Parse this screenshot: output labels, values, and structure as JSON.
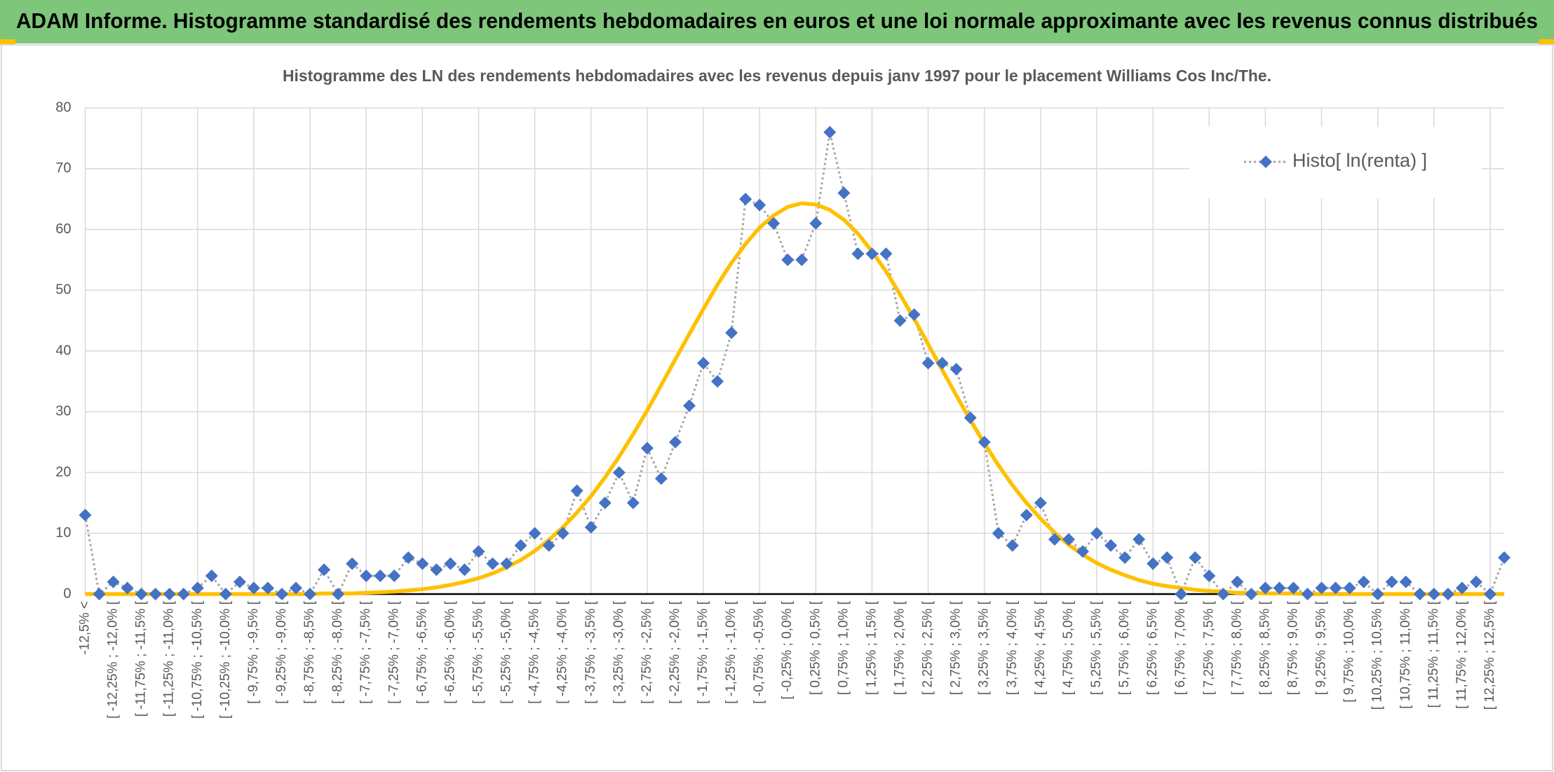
{
  "chart_data": {
    "type": "line",
    "title": "ADAM Informe. Histogramme standardisé des rendements hebdomadaires en euros et une loi normale approximante avec les revenus connus distribués",
    "subtitle": "Histogramme des LN des rendements hebdomadaires avec les revenus depuis janv 1997 pour le placement Williams Cos Inc/The.",
    "categories": [
      "-12,5% <",
      null,
      "[ -12,25% ; -12,0% [",
      null,
      "[ -11,75% ; -11,5% [",
      null,
      "[ -11,25% ; -11,0% [",
      null,
      "[ -10,75% ; -10,5% [",
      null,
      "[ -10,25% ; -10,0% [",
      null,
      "[ -9,75% ; -9,5% [",
      null,
      "[ -9,25% ; -9,0% [",
      null,
      "[ -8,75% ; -8,5% [",
      null,
      "[ -8,25% ; -8,0% [",
      null,
      "[ -7,75% ; -7,5% [",
      null,
      "[ -7,25% ; -7,0% [",
      null,
      "[ -6,75% ; -6,5% [",
      null,
      "[ -6,25% ; -6,0% [",
      null,
      "[ -5,75% ; -5,5% [",
      null,
      "[ -5,25% ; -5,0% [",
      null,
      "[ -4,75% ; -4,5% [",
      null,
      "[ -4,25% ; -4,0% [",
      null,
      "[ -3,75% ; -3,5% [",
      null,
      "[ -3,25% ; -3,0% [",
      null,
      "[ -2,75% ; -2,5% [",
      null,
      "[ -2,25% ; -2,0% [",
      null,
      "[ -1,75% ; -1,5% [",
      null,
      "[ -1,25% ; -1,0% [",
      null,
      "[ -0,75% ; -0,5% [",
      null,
      "[ -0,25% ; 0,0% [",
      null,
      "[ 0,25% ; 0,5% [",
      null,
      "[ 0,75% ; 1,0% [",
      null,
      "[ 1,25% ; 1,5% [",
      null,
      "[ 1,75% ; 2,0% [",
      null,
      "[ 2,25% ; 2,5% [",
      null,
      "[ 2,75% ; 3,0% [",
      null,
      "[ 3,25% ; 3,5% [",
      null,
      "[ 3,75% ; 4,0% [",
      null,
      "[ 4,25% ; 4,5% [",
      null,
      "[ 4,75% ; 5,0% [",
      null,
      "[ 5,25% ; 5,5% [",
      null,
      "[ 5,75% ; 6,0% [",
      null,
      "[ 6,25% ; 6,5% [",
      null,
      "[ 6,75% ; 7,0% [",
      null,
      "[ 7,25% ; 7,5% [",
      null,
      "[ 7,75% ; 8,0% [",
      null,
      "[ 8,25% ; 8,5% [",
      null,
      "[ 8,75% ; 9,0% [",
      null,
      "[ 9,25% ; 9,5% [",
      null,
      "[ 9,75% ; 10,0% [",
      null,
      "[ 10,25% ; 10,5% [",
      null,
      "[ 10,75% ; 11,0% [",
      null,
      "[ 11,25% ; 11,5% [",
      null,
      "[ 11,75% ; 12,0% [",
      null,
      "[ 12,25% ; 12,5% [",
      null
    ],
    "series": [
      {
        "name": "Histo[ ln(renta) ]",
        "color": "#4472c4",
        "line_color": "#a6a6a6",
        "line_style": "dotted",
        "marker": "diamond",
        "values": [
          13,
          0,
          2,
          1,
          0,
          0,
          0,
          0,
          1,
          3,
          0,
          2,
          1,
          1,
          0,
          1,
          0,
          4,
          0,
          5,
          3,
          3,
          3,
          6,
          5,
          4,
          5,
          4,
          7,
          5,
          5,
          8,
          10,
          8,
          10,
          17,
          11,
          15,
          20,
          15,
          24,
          19,
          25,
          31,
          38,
          35,
          43,
          65,
          64,
          61,
          55,
          55,
          61,
          76,
          66,
          56,
          56,
          56,
          45,
          46,
          38,
          38,
          37,
          29,
          25,
          10,
          8,
          13,
          15,
          9,
          9,
          7,
          10,
          8,
          6,
          9,
          5,
          6,
          0,
          6,
          3,
          0,
          2,
          0,
          1,
          1,
          1,
          0,
          1,
          1,
          1,
          2,
          0,
          2,
          2,
          0,
          0,
          0,
          1,
          2,
          0,
          6
        ]
      },
      {
        "color": "#ffc000",
        "line_style": "solid",
        "values": [
          0,
          0,
          0,
          0,
          0,
          0,
          0,
          0,
          0,
          0,
          0,
          0,
          0,
          0,
          0,
          0,
          0,
          0.1,
          0.1,
          0.1,
          0.2,
          0.3,
          0.4,
          0.6,
          0.8,
          1.1,
          1.5,
          2.0,
          2.6,
          3.4,
          4.4,
          5.6,
          7.1,
          8.9,
          11.0,
          13.4,
          16.1,
          19.2,
          22.6,
          26.3,
          30.2,
          34.4,
          38.6,
          42.8,
          46.9,
          50.9,
          54.5,
          57.6,
          60.3,
          62.3,
          63.7,
          64.3,
          64.1,
          63.2,
          61.6,
          59.3,
          56.4,
          53.1,
          49.3,
          45.3,
          41.1,
          36.9,
          32.7,
          28.6,
          24.8,
          21.2,
          17.9,
          15.0,
          12.4,
          10.1,
          8.1,
          6.5,
          5.1,
          4.0,
          3.1,
          2.3,
          1.7,
          1.3,
          1.0,
          0.7,
          0.5,
          0.4,
          0.2,
          0.2,
          0.1,
          0.1,
          0.1,
          0,
          0,
          0,
          0,
          0,
          0,
          0,
          0,
          0,
          0,
          0,
          0,
          0,
          0,
          0
        ]
      }
    ],
    "ylim": [
      0,
      80
    ],
    "yticks": [
      0,
      10,
      20,
      30,
      40,
      50,
      60,
      70,
      80
    ],
    "grid": true,
    "legend": "top-right"
  }
}
